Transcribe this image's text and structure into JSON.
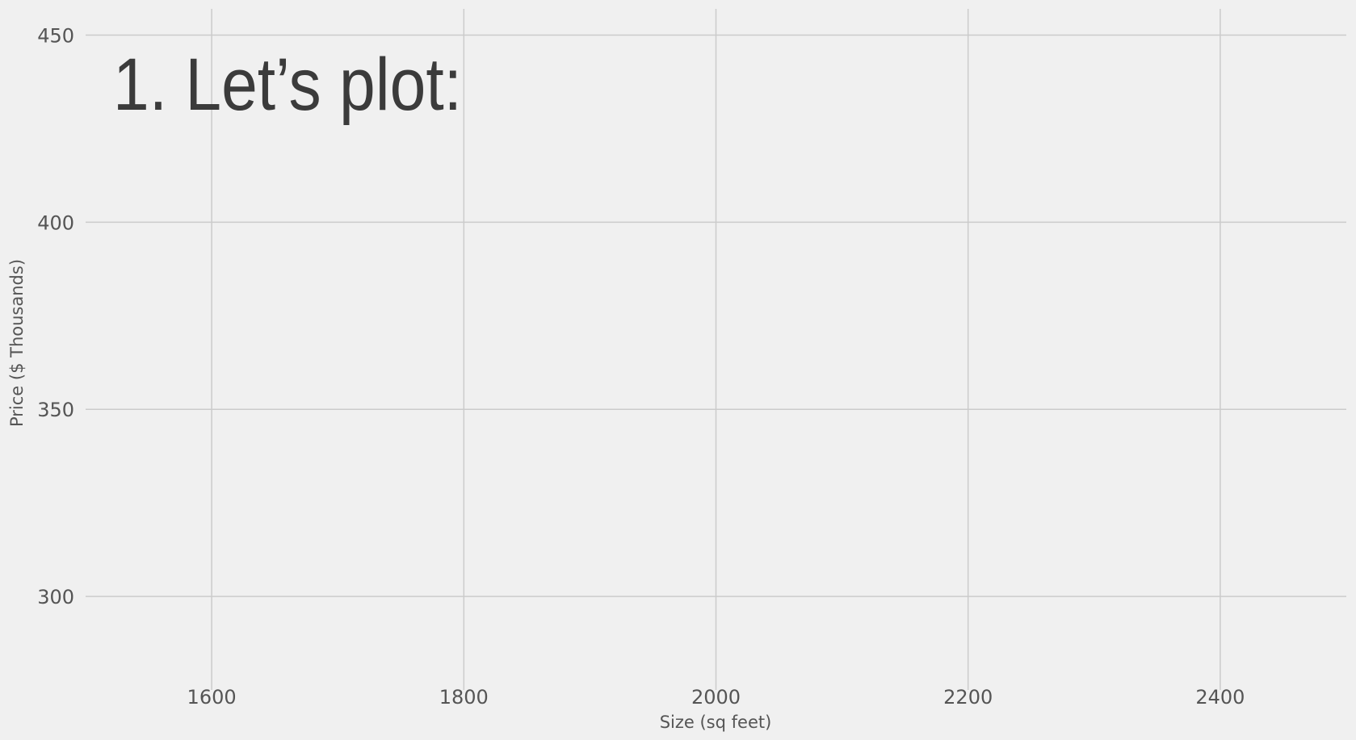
{
  "chart_data": {
    "type": "scatter",
    "title": "1. Let’s plot:",
    "xlabel": "Size (sq feet)",
    "ylabel": "Price ($ Thousands)",
    "xlim": [
      1500,
      2500
    ],
    "ylim": [
      275,
      457
    ],
    "x_ticks": [
      1600,
      1800,
      2000,
      2200,
      2400
    ],
    "y_ticks": [
      300,
      350,
      400,
      450
    ],
    "grid": true,
    "series": []
  },
  "colors": {
    "background": "#f0f0f0",
    "grid": "#cbcbcb",
    "tick_text": "#555555",
    "title_text": "#3b3b3b"
  }
}
